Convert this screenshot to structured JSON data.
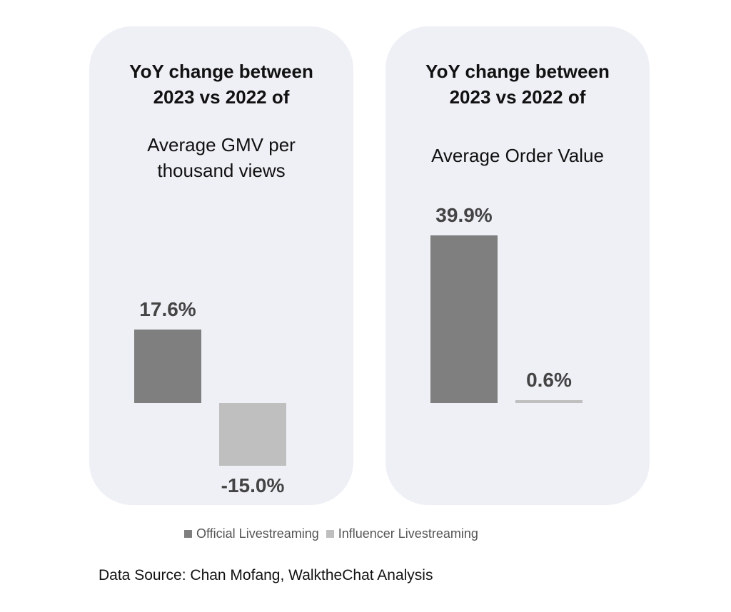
{
  "chart_data": [
    {
      "type": "bar",
      "title": "YoY change between 2023 vs 2022 of",
      "subtitle": "Average GMV per thousand views",
      "series": [
        {
          "name": "Official Livestreaming",
          "color": "#7f7f7f",
          "values": [
            17.6
          ],
          "value_labels": [
            "17.6%"
          ]
        },
        {
          "name": "Influencer Livestreaming",
          "color": "#bfbfbf",
          "values": [
            -15.0
          ],
          "value_labels": [
            "-15.0%"
          ]
        }
      ]
    },
    {
      "type": "bar",
      "title": "YoY change between 2023 vs 2022 of",
      "subtitle": "Average Order Value",
      "series": [
        {
          "color": "#7f7f7f",
          "values": [
            39.9
          ],
          "value_labels": [
            "39.9%"
          ]
        },
        {
          "color": "#bfbfbf",
          "values": [
            0.6
          ],
          "value_labels": [
            "0.6%"
          ]
        }
      ]
    }
  ],
  "source": "Data Source: Chan Mofang, WalktheChat Analysis"
}
